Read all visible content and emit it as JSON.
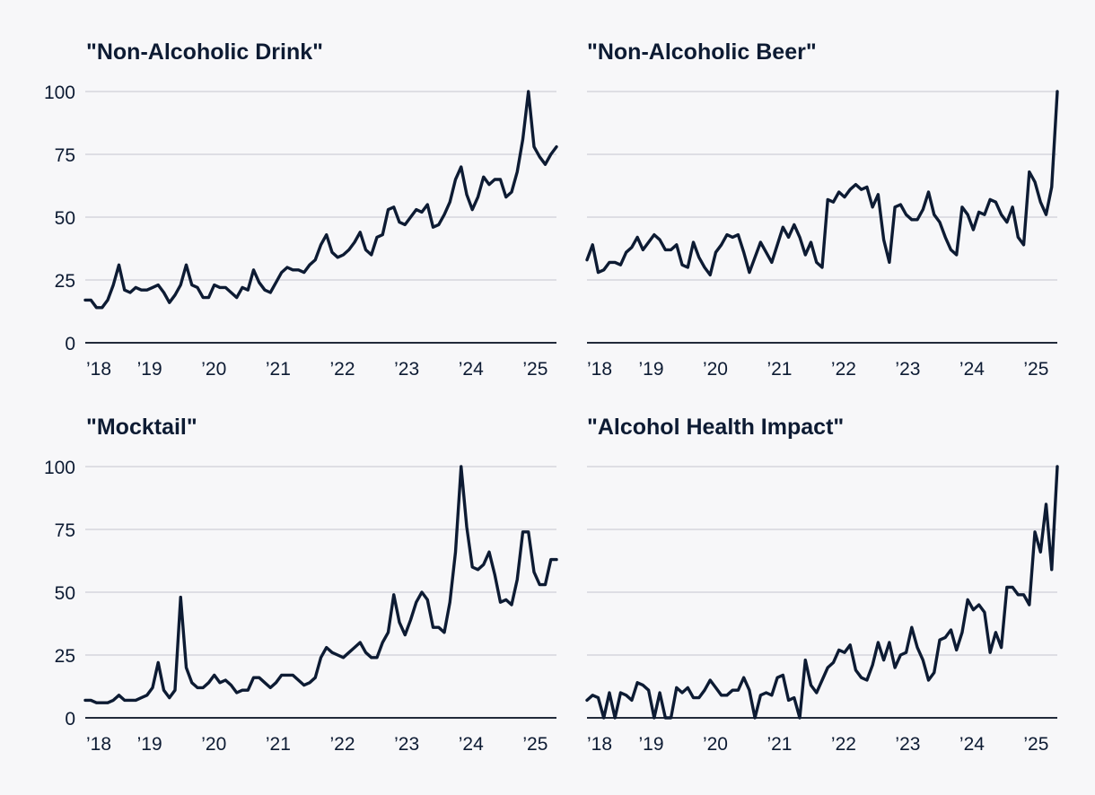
{
  "colors": {
    "background": "#f7f7f9",
    "line": "#0d1b33",
    "grid": "#d6d6de",
    "text": "#0d1b33"
  },
  "chart_data": [
    {
      "type": "line",
      "title": "\"Non-Alcoholic Drink\"",
      "xlabel": "",
      "ylabel": "",
      "ylim": [
        0,
        100
      ],
      "y_ticks": [
        "0",
        "25",
        "50",
        "75",
        "100"
      ],
      "x_tick_labels": [
        "’18",
        "’19",
        "’20",
        "’21",
        "’22",
        "’23",
        "’24",
        "’25"
      ],
      "x_range_years": [
        2018.0,
        2025.33
      ],
      "series": [
        {
          "name": "\"Non-Alcoholic Drink\"",
          "values": [
            17,
            17,
            14,
            14,
            17,
            23,
            31,
            21,
            20,
            22,
            21,
            21,
            22,
            23,
            20,
            16,
            19,
            23,
            31,
            23,
            22,
            18,
            18,
            23,
            22,
            22,
            20,
            18,
            22,
            21,
            29,
            24,
            21,
            20,
            24,
            28,
            30,
            29,
            29,
            28,
            31,
            33,
            39,
            43,
            36,
            34,
            35,
            37,
            40,
            44,
            37,
            35,
            42,
            43,
            53,
            54,
            48,
            47,
            50,
            53,
            52,
            55,
            46,
            47,
            51,
            56,
            65,
            70,
            59,
            53,
            58,
            66,
            63,
            65,
            65,
            58,
            60,
            68,
            81,
            100,
            78,
            74,
            71,
            75,
            78
          ]
        }
      ]
    },
    {
      "type": "line",
      "title": "\"Non-Alcoholic Beer\"",
      "xlabel": "",
      "ylabel": "",
      "ylim": [
        0,
        100
      ],
      "y_ticks": [
        "0",
        "25",
        "50",
        "75",
        "100"
      ],
      "x_tick_labels": [
        "’18",
        "’19",
        "’20",
        "’21",
        "’22",
        "’23",
        "’24",
        "’25"
      ],
      "x_range_years": [
        2018.0,
        2025.33
      ],
      "series": [
        {
          "name": "\"Non-Alcoholic Beer\"",
          "values": [
            33,
            39,
            28,
            29,
            32,
            32,
            31,
            36,
            38,
            42,
            37,
            40,
            43,
            41,
            37,
            37,
            39,
            31,
            30,
            40,
            34,
            30,
            27,
            36,
            39,
            43,
            42,
            43,
            36,
            28,
            34,
            40,
            36,
            32,
            39,
            46,
            42,
            47,
            42,
            35,
            40,
            32,
            30,
            57,
            56,
            60,
            58,
            61,
            63,
            61,
            62,
            54,
            59,
            41,
            32,
            54,
            55,
            51,
            49,
            49,
            53,
            60,
            51,
            48,
            42,
            37,
            35,
            54,
            51,
            45,
            52,
            51,
            57,
            56,
            51,
            48,
            54,
            42,
            39,
            68,
            64,
            56,
            51,
            62,
            100
          ]
        }
      ]
    },
    {
      "type": "line",
      "title": "\"Mocktail\"",
      "xlabel": "",
      "ylabel": "",
      "ylim": [
        0,
        100
      ],
      "y_ticks": [
        "0",
        "25",
        "50",
        "75",
        "100"
      ],
      "x_tick_labels": [
        "’18",
        "’19",
        "’20",
        "’21",
        "’22",
        "’23",
        "’24",
        "’25"
      ],
      "x_range_years": [
        2018.0,
        2025.33
      ],
      "series": [
        {
          "name": "\"Mocktail\"",
          "values": [
            7,
            7,
            6,
            6,
            6,
            7,
            9,
            7,
            7,
            7,
            8,
            9,
            12,
            22,
            11,
            8,
            11,
            48,
            20,
            14,
            12,
            12,
            14,
            17,
            14,
            15,
            13,
            10,
            11,
            11,
            16,
            16,
            14,
            12,
            14,
            17,
            17,
            17,
            15,
            13,
            14,
            16,
            24,
            28,
            26,
            25,
            24,
            26,
            28,
            30,
            26,
            24,
            24,
            30,
            34,
            49,
            38,
            33,
            39,
            46,
            50,
            47,
            36,
            36,
            34,
            46,
            66,
            100,
            76,
            60,
            59,
            61,
            66,
            57,
            46,
            47,
            45,
            55,
            74,
            74,
            58,
            53,
            53,
            63,
            63
          ]
        }
      ]
    },
    {
      "type": "line",
      "title": "\"Alcohol Health Impact\"",
      "xlabel": "",
      "ylabel": "",
      "ylim": [
        0,
        100
      ],
      "y_ticks": [
        "0",
        "25",
        "50",
        "75",
        "100"
      ],
      "x_tick_labels": [
        "’18",
        "’19",
        "’20",
        "’21",
        "’22",
        "’23",
        "’24",
        "’25"
      ],
      "x_range_years": [
        2018.0,
        2025.33
      ],
      "series": [
        {
          "name": "\"Alcohol Health Impact\"",
          "values": [
            7,
            9,
            8,
            0,
            10,
            0,
            10,
            9,
            7,
            14,
            13,
            11,
            0,
            10,
            0,
            0,
            12,
            10,
            12,
            8,
            8,
            11,
            15,
            12,
            9,
            9,
            11,
            11,
            16,
            11,
            0,
            9,
            10,
            9,
            16,
            17,
            7,
            8,
            0,
            23,
            13,
            10,
            15,
            20,
            22,
            27,
            26,
            29,
            19,
            16,
            15,
            21,
            30,
            23,
            30,
            20,
            25,
            26,
            36,
            28,
            23,
            15,
            18,
            31,
            32,
            35,
            27,
            34,
            47,
            43,
            45,
            42,
            26,
            34,
            28,
            52,
            52,
            49,
            49,
            45,
            74,
            66,
            85,
            59,
            100
          ]
        }
      ]
    }
  ]
}
